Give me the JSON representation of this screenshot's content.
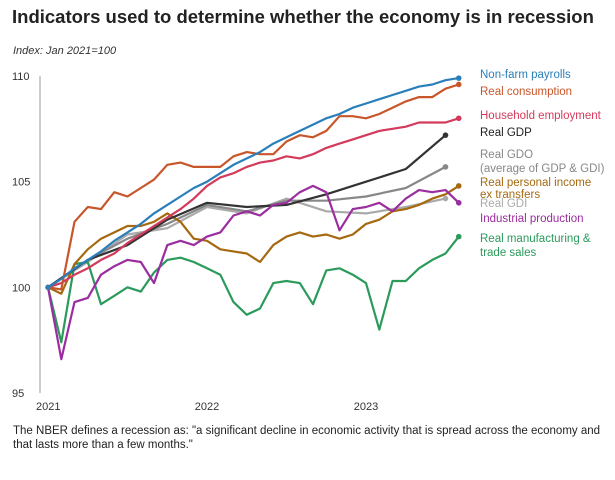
{
  "title": "Indicators used to determine whether the economy is in recession",
  "subtitle": "Index: Jan 2021=100",
  "footnote": "The NBER defines a recession as: \"a significant decline in economic activity that is spread across the economy and that lasts more than a few months.\"",
  "chart_data": {
    "type": "line",
    "title": "Indicators used to determine whether the economy is in recession",
    "subtitle": "Index: Jan 2021=100",
    "x_ticks": [
      "2021",
      "2022",
      "2023"
    ],
    "y_ticks": [
      95,
      100,
      105,
      110
    ],
    "ylim": [
      95,
      110
    ],
    "xlim": [
      0,
      32
    ],
    "grid": false,
    "legend": "direct labels at line ends",
    "series": [
      {
        "name": "Non-farm payrolls",
        "color": "#2a7fbb",
        "values": [
          100.0,
          100.4,
          100.9,
          101.3,
          101.7,
          102.2,
          102.6,
          103.0,
          103.5,
          103.9,
          104.3,
          104.7,
          105.0,
          105.4,
          105.8,
          106.1,
          106.4,
          106.8,
          107.1,
          107.4,
          107.7,
          108.0,
          108.2,
          108.5,
          108.7,
          108.9,
          109.1,
          109.3,
          109.5,
          109.6,
          109.8,
          109.9
        ],
        "label_lines": [
          "Non-farm payrolls"
        ]
      },
      {
        "name": "Real consumption",
        "color": "#c8562a",
        "values": [
          100.0,
          99.9,
          103.1,
          103.8,
          103.7,
          104.5,
          104.3,
          104.7,
          105.1,
          105.8,
          105.9,
          105.7,
          105.7,
          105.7,
          106.2,
          106.4,
          106.3,
          106.3,
          106.9,
          107.2,
          107.1,
          107.4,
          108.1,
          108.1,
          108.0,
          108.2,
          108.5,
          108.8,
          109.0,
          109.0,
          109.4,
          109.6
        ],
        "label_lines": [
          "Real consumption"
        ]
      },
      {
        "name": "Household employment",
        "color": "#d43a5c",
        "values": [
          100.0,
          100.2,
          100.6,
          100.9,
          101.3,
          101.6,
          102.1,
          102.5,
          102.9,
          103.3,
          103.7,
          104.2,
          104.8,
          105.2,
          105.4,
          105.7,
          105.9,
          106.0,
          106.2,
          106.1,
          106.3,
          106.6,
          106.8,
          107.0,
          107.2,
          107.4,
          107.5,
          107.6,
          107.8,
          107.8,
          107.8,
          108.0
        ],
        "label_lines": [
          "Household employment"
        ]
      },
      {
        "name": "Real GDP",
        "color": "#333333",
        "x": [
          0,
          3,
          6,
          9,
          12,
          15,
          18,
          21,
          24,
          27,
          30
        ],
        "values": [
          100.0,
          101.3,
          102.0,
          103.2,
          104.0,
          103.8,
          103.9,
          104.4,
          105.0,
          105.6,
          107.2
        ],
        "label_lines": [
          "Real GDP"
        ]
      },
      {
        "name": "Real GDO (average of GDP & GDI)",
        "color": "#888888",
        "x": [
          0,
          3,
          6,
          9,
          12,
          15,
          18,
          21,
          24,
          27,
          30
        ],
        "values": [
          100.0,
          101.3,
          102.3,
          103.0,
          103.9,
          103.6,
          104.1,
          104.1,
          104.3,
          104.7,
          105.7
        ],
        "label_lines": [
          "Real GDO",
          "(average of GDP & GDI)"
        ]
      },
      {
        "name": "Real personal income ex transfers",
        "color": "#a5690f",
        "values": [
          100.0,
          99.7,
          101.1,
          101.8,
          102.3,
          102.6,
          102.9,
          102.9,
          103.1,
          103.5,
          103.1,
          102.3,
          102.2,
          101.8,
          101.7,
          101.6,
          101.2,
          102.0,
          102.4,
          102.6,
          102.4,
          102.5,
          102.3,
          102.5,
          103.0,
          103.2,
          103.6,
          103.7,
          103.9,
          104.2,
          104.4,
          104.8
        ],
        "label_lines": [
          "Real personal income",
          "ex transfers"
        ]
      },
      {
        "name": "Real GDI",
        "color": "#aaaaaa",
        "x": [
          0,
          3,
          6,
          9,
          12,
          15,
          18,
          21,
          24,
          27,
          30
        ],
        "values": [
          100.0,
          101.2,
          102.5,
          102.8,
          103.8,
          103.5,
          104.2,
          103.6,
          103.5,
          103.8,
          104.2
        ],
        "label_lines": [
          "Real GDI"
        ]
      },
      {
        "name": "Industrial production",
        "color": "#9b2d9f",
        "values": [
          100.0,
          96.6,
          99.3,
          99.5,
          100.6,
          101.0,
          101.3,
          101.2,
          100.2,
          102.0,
          102.2,
          102.0,
          102.4,
          102.6,
          103.4,
          103.6,
          103.4,
          103.9,
          104.0,
          104.5,
          104.8,
          104.5,
          102.7,
          103.7,
          103.8,
          104.0,
          103.6,
          104.2,
          104.6,
          104.5,
          104.6,
          104.0
        ],
        "label_lines": [
          "Industrial production"
        ]
      },
      {
        "name": "Real manufacturing & trade sales",
        "color": "#2b9a5b",
        "values": [
          100.0,
          97.4,
          101.1,
          101.2,
          99.2,
          99.6,
          100.0,
          99.8,
          100.7,
          101.3,
          101.4,
          101.2,
          100.9,
          100.6,
          99.3,
          98.7,
          99.0,
          100.2,
          100.3,
          100.2,
          99.2,
          100.8,
          100.9,
          100.6,
          100.2,
          98.0,
          100.3,
          100.3,
          100.9,
          101.3,
          101.6,
          102.4
        ],
        "label_lines": [
          "Real manufacturing &",
          "trade sales"
        ]
      }
    ]
  }
}
